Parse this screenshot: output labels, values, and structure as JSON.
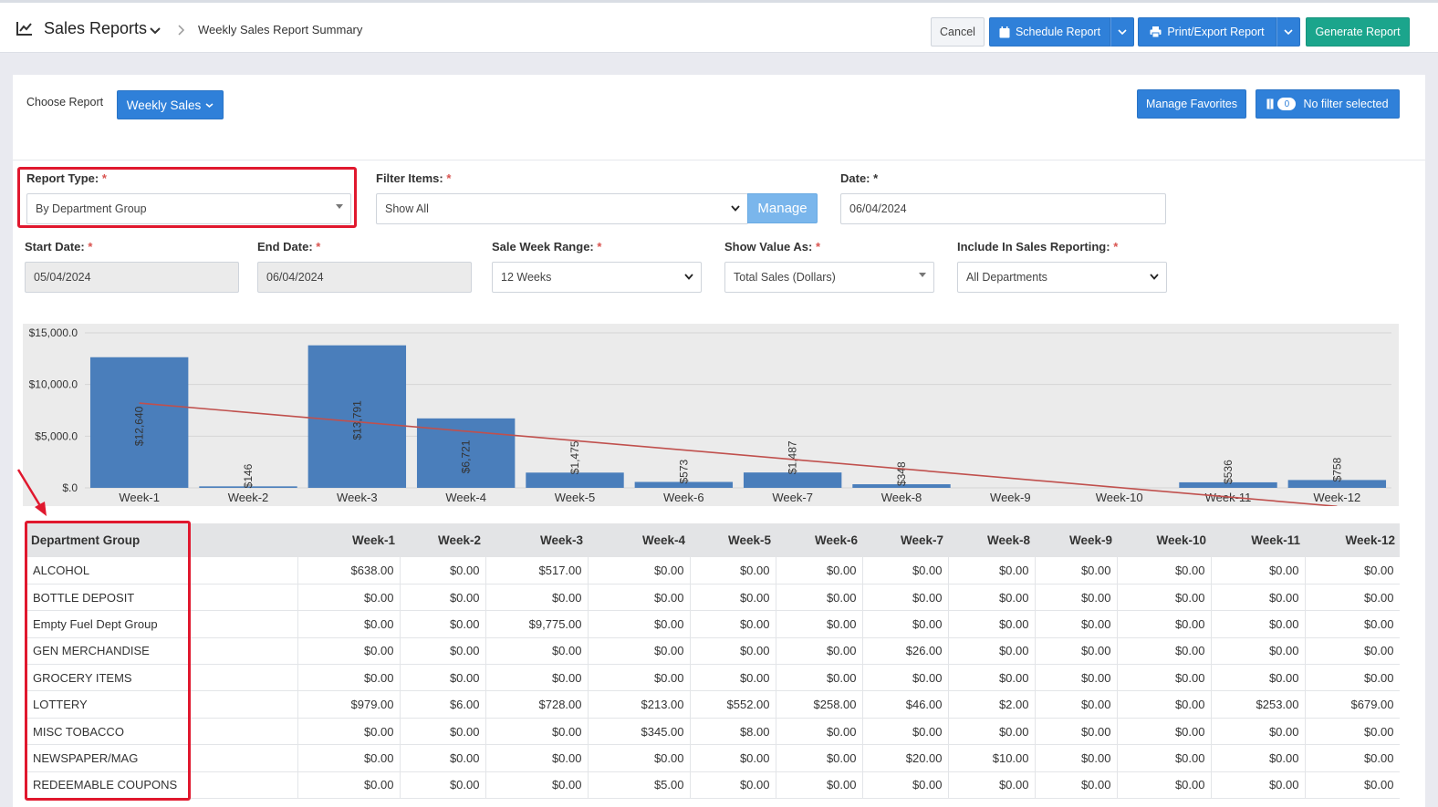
{
  "header": {
    "app_title": "Sales Reports",
    "breadcrumb": "Weekly Sales Report Summary",
    "cancel_label": "Cancel",
    "schedule_label": "Schedule Report",
    "print_label": "Print/Export Report",
    "generate_label": "Generate Report"
  },
  "toolbar": {
    "choose_report_label": "Choose Report",
    "report_selected": "Weekly Sales",
    "manage_favorites_label": "Manage Favorites",
    "filter_count": "0",
    "no_filter_label": "No filter selected"
  },
  "form": {
    "report_type_label": "Report Type:",
    "report_type_value": "By Department Group",
    "filter_items_label": "Filter Items:",
    "filter_items_value": "Show All",
    "manage_label": "Manage",
    "date_label": "Date:",
    "date_value": "06/04/2024",
    "start_date_label": "Start Date:",
    "start_date_value": "05/04/2024",
    "end_date_label": "End Date:",
    "end_date_value": "06/04/2024",
    "sale_week_range_label": "Sale Week Range:",
    "sale_week_range_value": "12 Weeks",
    "show_value_as_label": "Show Value As:",
    "show_value_as_value": "Total Sales (Dollars)",
    "include_label": "Include In Sales Reporting:",
    "include_value": "All Departments",
    "required_mark": "*"
  },
  "colors": {
    "primary": "#2f80d9",
    "success": "#1ba58c",
    "bar": "#4a7ebb",
    "trend": "#c0504d",
    "highlight": "#e0182e"
  },
  "chart_data": {
    "type": "bar",
    "categories": [
      "Week-1",
      "Week-2",
      "Week-3",
      "Week-4",
      "Week-5",
      "Week-6",
      "Week-7",
      "Week-8",
      "Week-9",
      "Week-10",
      "Week-11",
      "Week-12"
    ],
    "values": [
      12640,
      146,
      13791,
      6721,
      1475,
      573,
      1487,
      348,
      0,
      0,
      536,
      758
    ],
    "data_labels": [
      "$12,640",
      "$146",
      "$13,791",
      "$6,721",
      "$1,475",
      "$573",
      "$1,487",
      "$348",
      "",
      "",
      "$536",
      "$758"
    ],
    "y_ticks": [
      "$.0",
      "$5,000.0",
      "$10,000.0",
      "$15,000.0"
    ],
    "ylim": [
      0,
      15000
    ],
    "trendline": "linear",
    "grid": true,
    "legend": "none"
  },
  "table": {
    "columns": [
      "Department Group",
      "Week-1",
      "Week-2",
      "Week-3",
      "Week-4",
      "Week-5",
      "Week-6",
      "Week-7",
      "Week-8",
      "Week-9",
      "Week-10",
      "Week-11",
      "Week-12"
    ],
    "rows": [
      [
        "ALCOHOL",
        "$638.00",
        "$0.00",
        "$517.00",
        "$0.00",
        "$0.00",
        "$0.00",
        "$0.00",
        "$0.00",
        "$0.00",
        "$0.00",
        "$0.00",
        "$0.00"
      ],
      [
        "BOTTLE DEPOSIT",
        "$0.00",
        "$0.00",
        "$0.00",
        "$0.00",
        "$0.00",
        "$0.00",
        "$0.00",
        "$0.00",
        "$0.00",
        "$0.00",
        "$0.00",
        "$0.00"
      ],
      [
        "Empty Fuel Dept Group",
        "$0.00",
        "$0.00",
        "$9,775.00",
        "$0.00",
        "$0.00",
        "$0.00",
        "$0.00",
        "$0.00",
        "$0.00",
        "$0.00",
        "$0.00",
        "$0.00"
      ],
      [
        "GEN MERCHANDISE",
        "$0.00",
        "$0.00",
        "$0.00",
        "$0.00",
        "$0.00",
        "$0.00",
        "$26.00",
        "$0.00",
        "$0.00",
        "$0.00",
        "$0.00",
        "$0.00"
      ],
      [
        "GROCERY ITEMS",
        "$0.00",
        "$0.00",
        "$0.00",
        "$0.00",
        "$0.00",
        "$0.00",
        "$0.00",
        "$0.00",
        "$0.00",
        "$0.00",
        "$0.00",
        "$0.00"
      ],
      [
        "LOTTERY",
        "$979.00",
        "$6.00",
        "$728.00",
        "$213.00",
        "$552.00",
        "$258.00",
        "$46.00",
        "$2.00",
        "$0.00",
        "$0.00",
        "$253.00",
        "$679.00"
      ],
      [
        "MISC TOBACCO",
        "$0.00",
        "$0.00",
        "$0.00",
        "$345.00",
        "$8.00",
        "$0.00",
        "$0.00",
        "$0.00",
        "$0.00",
        "$0.00",
        "$0.00",
        "$0.00"
      ],
      [
        "NEWSPAPER/MAG",
        "$0.00",
        "$0.00",
        "$0.00",
        "$0.00",
        "$0.00",
        "$0.00",
        "$20.00",
        "$10.00",
        "$0.00",
        "$0.00",
        "$0.00",
        "$0.00"
      ],
      [
        "REDEEMABLE COUPONS",
        "$0.00",
        "$0.00",
        "$0.00",
        "$5.00",
        "$0.00",
        "$0.00",
        "$0.00",
        "$0.00",
        "$0.00",
        "$0.00",
        "$0.00",
        "$0.00"
      ]
    ]
  }
}
